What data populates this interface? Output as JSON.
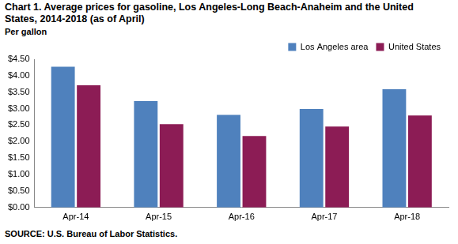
{
  "chart_data": {
    "type": "bar",
    "title": "Chart 1. Average prices for gasoline, Los Angeles-Long Beach-Anaheim and the United States, 2014-2018  (as of April)",
    "y_label": "Per gallon",
    "source": "SOURCE: U.S. Bureau of Labor Statistics.",
    "categories": [
      "Apr-14",
      "Apr-15",
      "Apr-16",
      "Apr-17",
      "Apr-18"
    ],
    "series": [
      {
        "name": "Los Angeles area",
        "color": "#4f81bd",
        "values": [
          4.27,
          3.23,
          2.81,
          2.99,
          3.59
        ]
      },
      {
        "name": "United States",
        "color": "#8c1c55",
        "values": [
          3.71,
          2.53,
          2.17,
          2.46,
          2.79
        ]
      }
    ],
    "ylim": [
      0,
      4.5
    ],
    "yticks": [
      {
        "value": 0,
        "label": "$0.00"
      },
      {
        "value": 0.5,
        "label": "$0.50"
      },
      {
        "value": 1,
        "label": "$1.00"
      },
      {
        "value": 1.5,
        "label": "$1.50"
      },
      {
        "value": 2,
        "label": "$2.00"
      },
      {
        "value": 2.5,
        "label": "$2.50"
      },
      {
        "value": 3,
        "label": "$3.00"
      },
      {
        "value": 3.5,
        "label": "$3.50"
      },
      {
        "value": 4,
        "label": "$4.00"
      },
      {
        "value": 4.5,
        "label": "$4.50"
      }
    ],
    "grid": false,
    "legend": "top-right"
  }
}
